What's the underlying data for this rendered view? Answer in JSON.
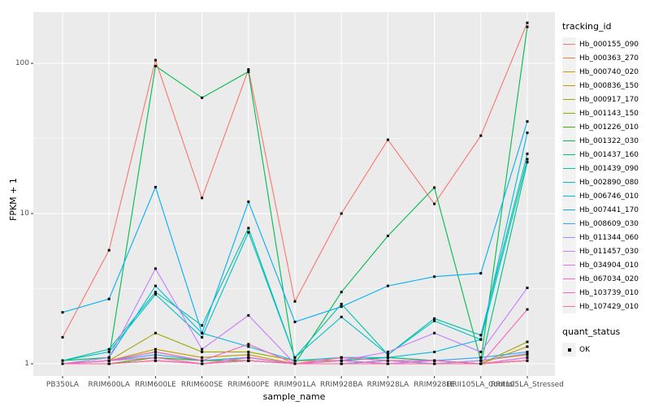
{
  "chart_data": {
    "type": "line",
    "title": "",
    "xlabel": "sample_name",
    "ylabel": "FPKM + 1",
    "yscale": "log10",
    "ylim": [
      0.83,
      210
    ],
    "yticks": [
      1,
      10,
      100
    ],
    "ytick_labels": [
      "1",
      "10",
      "100"
    ],
    "yminor": [
      3.162,
      31.62
    ],
    "grid": "on",
    "panel_bg": "#EBEBEB",
    "grid_color": "#FFFFFF",
    "tick_label_color": "#4D4D4D",
    "point_marker": {
      "shape": "square",
      "color": "#000000",
      "size": 3
    },
    "legend": {
      "position": "right",
      "title": "tracking_id"
    },
    "legend2": {
      "title": "quant_status",
      "items": [
        {
          "label": "OK",
          "marker": "black-square"
        }
      ]
    },
    "categories": [
      "PB350LA",
      "RRIM600LA",
      "RRIM600LE",
      "RRIM600SE",
      "RRIM600PE",
      "RRIM901LA",
      "RRIM928BA",
      "RRIM928LA",
      "RRIM928LE",
      "RRII105LA_Control",
      "RRII105LA_Stressed"
    ],
    "series": [
      {
        "name": "Hb_000155_090",
        "color": "#F8766D",
        "values": [
          1.5,
          5.7,
          105,
          12.7,
          91,
          2.6,
          10,
          31,
          11.6,
          33,
          186
        ]
      },
      {
        "name": "Hb_000363_270",
        "color": "#EA8331",
        "values": [
          1,
          1,
          1.1,
          1,
          1.05,
          1,
          1.05,
          1,
          1,
          1,
          1.1
        ]
      },
      {
        "name": "Hb_000740_020",
        "color": "#D89000",
        "values": [
          1,
          1.05,
          1.1,
          1,
          1.1,
          1,
          1,
          1.05,
          1,
          1.05,
          1.15
        ]
      },
      {
        "name": "Hb_000836_150",
        "color": "#C09B00",
        "values": [
          1,
          1.05,
          1.25,
          1.1,
          1.15,
          1,
          1.1,
          1.05,
          1.05,
          1,
          1.3
        ]
      },
      {
        "name": "Hb_000917_170",
        "color": "#A3A500",
        "values": [
          1,
          1.05,
          1.6,
          1.2,
          1.2,
          1.05,
          1.05,
          1.1,
          1.05,
          1,
          1.4
        ]
      },
      {
        "name": "Hb_001143_150",
        "color": "#7CAE00",
        "values": [
          1,
          1,
          1.05,
          1,
          1.05,
          1,
          1,
          1,
          1,
          1,
          1.05
        ]
      },
      {
        "name": "Hb_001226_010",
        "color": "#39B600",
        "values": [
          1,
          1,
          1.1,
          1.05,
          1.05,
          1,
          1,
          1.05,
          1,
          1,
          1.05
        ]
      },
      {
        "name": "Hb_001322_030",
        "color": "#00BB4E",
        "values": [
          1.05,
          1.1,
          96,
          59,
          88,
          1,
          3,
          7.1,
          14.9,
          1.05,
          175
        ]
      },
      {
        "name": "Hb_001437_160",
        "color": "#00BF7D",
        "values": [
          1,
          1.05,
          1.2,
          1.05,
          1.1,
          1,
          1.05,
          1.1,
          1.05,
          1,
          22
        ]
      },
      {
        "name": "Hb_001439_090",
        "color": "#00C1A3",
        "values": [
          1.05,
          1.25,
          3,
          1.8,
          8,
          1.1,
          2.5,
          1.15,
          2,
          1.55,
          25
        ]
      },
      {
        "name": "Hb_002890_080",
        "color": "#00BFC4",
        "values": [
          1.05,
          1.2,
          2.9,
          1.5,
          7.5,
          1.1,
          2.05,
          1.15,
          1.93,
          1.45,
          23
        ]
      },
      {
        "name": "Hb_006746_010",
        "color": "#00BAE0",
        "values": [
          1,
          1.1,
          3.3,
          1.6,
          1.3,
          1.05,
          1.1,
          1.1,
          1.2,
          1.45,
          34.5
        ]
      },
      {
        "name": "Hb_007441_170",
        "color": "#00B0F6",
        "values": [
          2.2,
          2.7,
          15,
          1.6,
          12,
          1.9,
          2.4,
          3.3,
          3.8,
          4,
          41
        ]
      },
      {
        "name": "Hb_008609_030",
        "color": "#35A2FF",
        "values": [
          1,
          1.05,
          1.15,
          1.05,
          1.1,
          1,
          1.05,
          1,
          1.05,
          1.1,
          1.2
        ]
      },
      {
        "name": "Hb_011344_060",
        "color": "#9590FF",
        "values": [
          1,
          1,
          1.05,
          1,
          1.05,
          1,
          1,
          1.05,
          1,
          1.05,
          1.17
        ]
      },
      {
        "name": "Hb_011457_030",
        "color": "#C77CFF",
        "values": [
          1,
          1.1,
          4.3,
          1.25,
          2.1,
          1,
          1.05,
          1.2,
          1.6,
          1.2,
          3.2
        ]
      },
      {
        "name": "Hb_034904_010",
        "color": "#E76BF3",
        "values": [
          1,
          1.05,
          1.1,
          1,
          1.05,
          1,
          1,
          1,
          1.05,
          1,
          1.1
        ]
      },
      {
        "name": "Hb_067034_020",
        "color": "#FA62DB",
        "values": [
          1,
          1,
          1.05,
          1,
          1.1,
          1,
          1.05,
          1,
          1,
          1,
          1.05
        ]
      },
      {
        "name": "Hb_103739_010",
        "color": "#FF62BC",
        "values": [
          1,
          1.05,
          1.2,
          1.05,
          1.35,
          1,
          1.1,
          1.05,
          1.05,
          1,
          2.3
        ]
      },
      {
        "name": "Hb_107429_010",
        "color": "#FF6A98",
        "values": [
          1,
          1,
          1.05,
          1,
          1.05,
          1,
          1,
          1,
          1,
          1,
          1.05
        ]
      }
    ]
  }
}
